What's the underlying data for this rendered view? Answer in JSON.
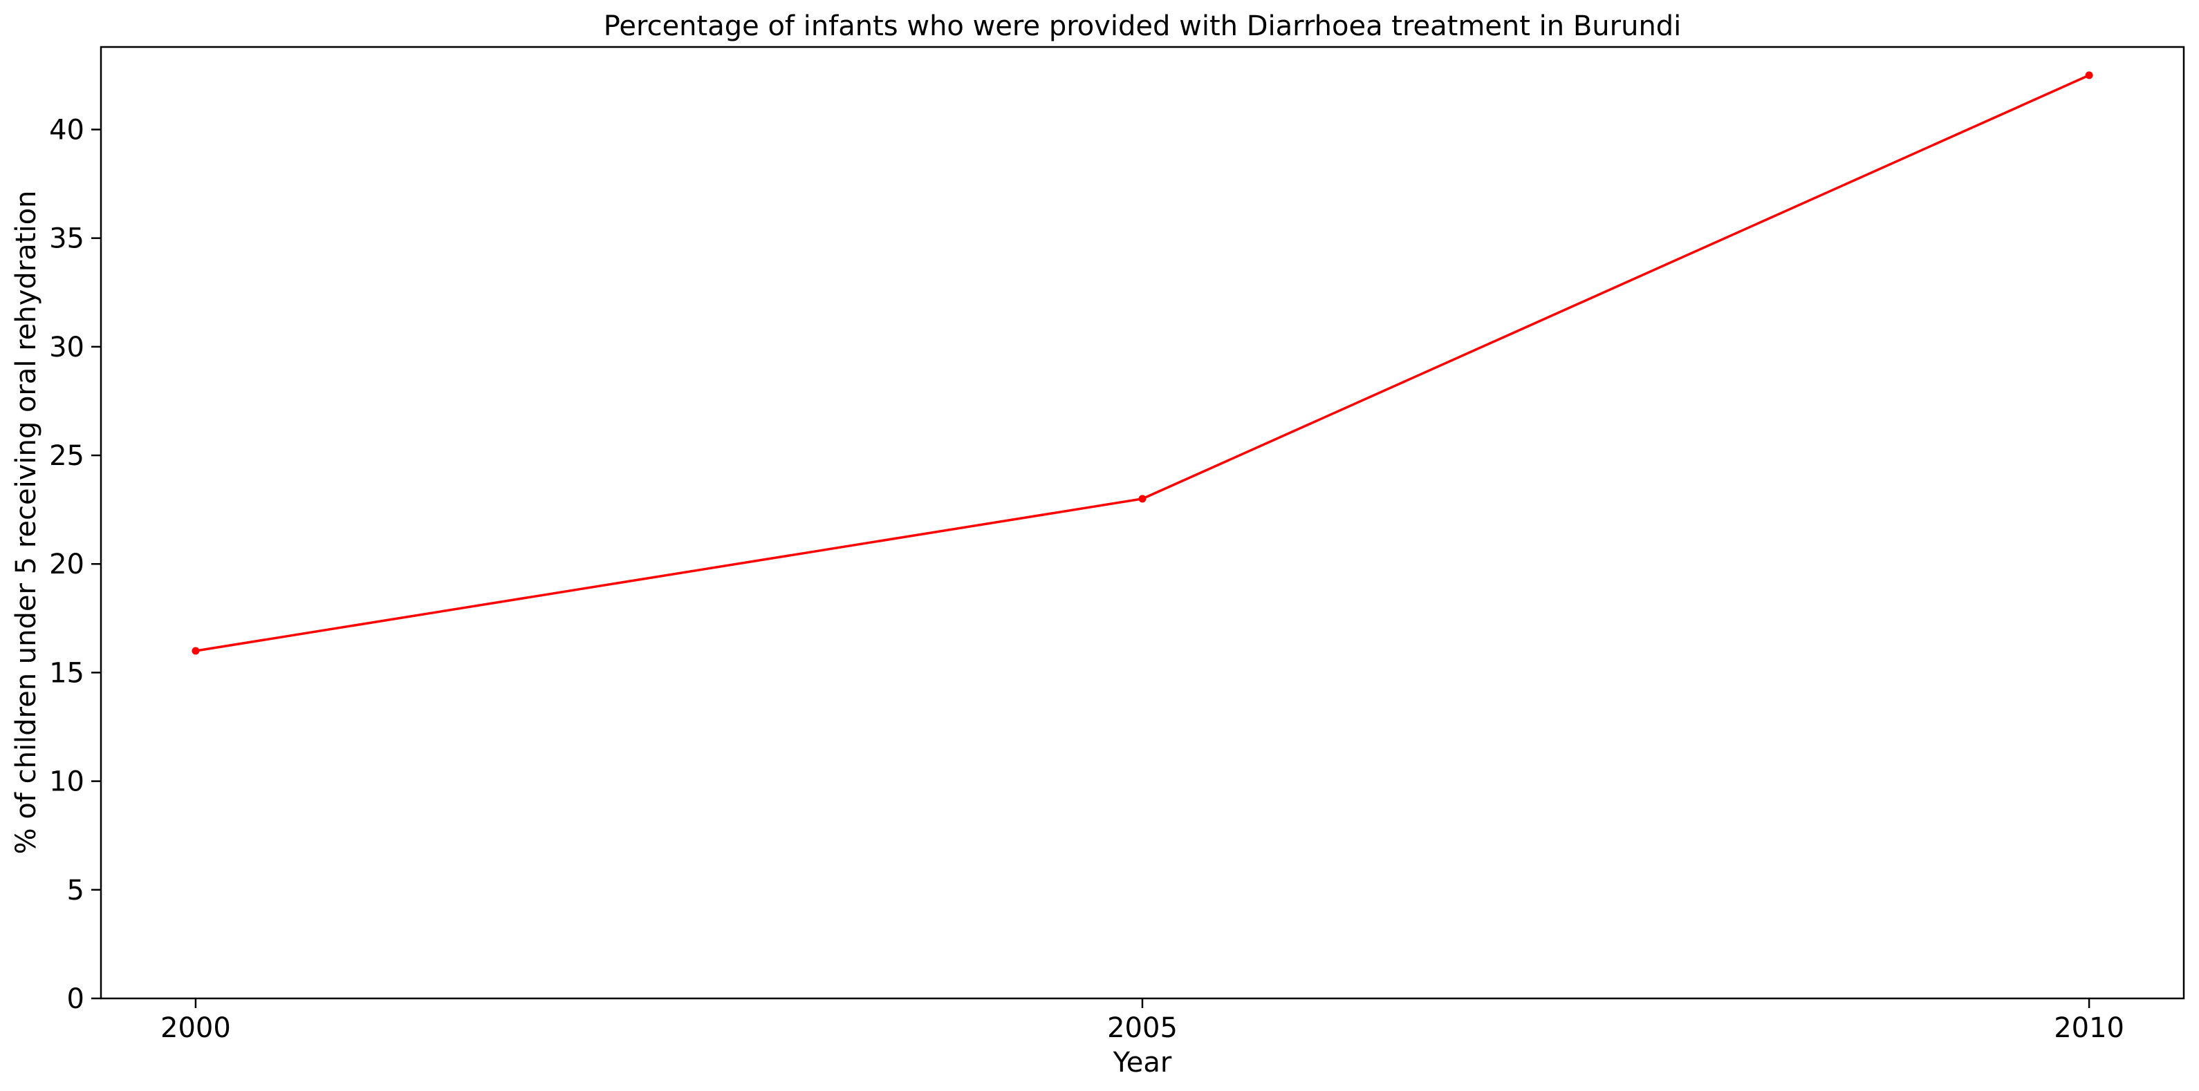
{
  "chart_data": {
    "type": "line",
    "title": "Percentage of infants who were provided with Diarrhoea treatment in Burundi",
    "xlabel": "Year",
    "ylabel": "% of children under 5 receiving oral rehydration",
    "x": [
      2000,
      2005,
      2010
    ],
    "xticks": [
      "2000",
      "2005",
      "2010"
    ],
    "xlim": [
      1999.5,
      2010.5
    ],
    "ylim": [
      0,
      43.8
    ],
    "yticks": [
      "0",
      "5",
      "10",
      "15",
      "20",
      "25",
      "30",
      "35",
      "40"
    ],
    "series": [
      {
        "values": [
          16,
          23,
          42.5
        ],
        "color": "#ff0000"
      }
    ],
    "grid": false,
    "legend": "none"
  }
}
